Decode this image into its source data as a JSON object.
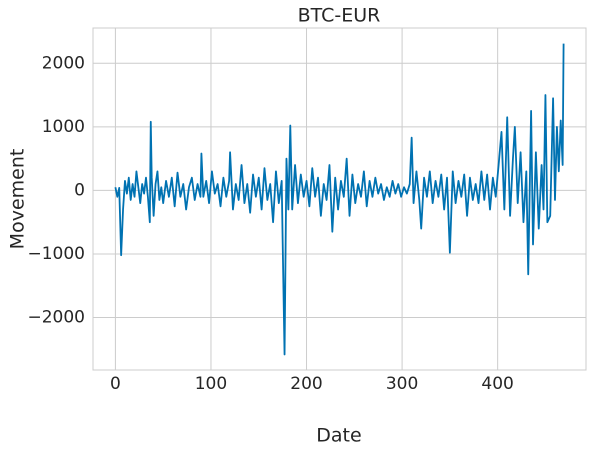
{
  "chart_data": {
    "type": "line",
    "title": "BTC-EUR",
    "xlabel": "Date",
    "ylabel": "Movement",
    "x": [
      0,
      2,
      4,
      6,
      8,
      10,
      12,
      14,
      16,
      18,
      20,
      22,
      24,
      26,
      28,
      30,
      32,
      34,
      36,
      37,
      38,
      40,
      42,
      44,
      46,
      48,
      50,
      53,
      56,
      59,
      62,
      65,
      68,
      71,
      74,
      77,
      80,
      83,
      86,
      89,
      90,
      92,
      95,
      98,
      101,
      104,
      107,
      110,
      113,
      116,
      119,
      120,
      123,
      126,
      129,
      132,
      135,
      138,
      141,
      144,
      147,
      150,
      153,
      156,
      159,
      162,
      165,
      168,
      171,
      174,
      175,
      177,
      179,
      181,
      183,
      185,
      188,
      191,
      194,
      197,
      200,
      203,
      206,
      209,
      212,
      215,
      218,
      221,
      224,
      227,
      230,
      233,
      236,
      239,
      242,
      245,
      248,
      251,
      254,
      257,
      260,
      263,
      266,
      269,
      272,
      275,
      278,
      281,
      284,
      287,
      290,
      293,
      296,
      299,
      302,
      305,
      308,
      310,
      312,
      315,
      318,
      320,
      323,
      326,
      329,
      332,
      335,
      338,
      341,
      344,
      347,
      350,
      353,
      356,
      359,
      362,
      365,
      368,
      371,
      374,
      377,
      380,
      383,
      386,
      389,
      392,
      395,
      398,
      401,
      404,
      407,
      410,
      413,
      416,
      418,
      421,
      424,
      427,
      430,
      432,
      435,
      437,
      440,
      443,
      446,
      448,
      450,
      452,
      455,
      458,
      460,
      462,
      464,
      466,
      468,
      469
    ],
    "series": [
      {
        "name": "Movement",
        "color": "#0072b2",
        "values": [
          50,
          -100,
          40,
          -1020,
          -300,
          150,
          -50,
          200,
          -150,
          100,
          -100,
          300,
          50,
          -200,
          100,
          -50,
          200,
          -100,
          -500,
          1080,
          200,
          -400,
          100,
          300,
          -150,
          50,
          -200,
          150,
          -100,
          200,
          -250,
          280,
          -100,
          100,
          -300,
          50,
          200,
          -150,
          100,
          -100,
          580,
          -100,
          150,
          -200,
          300,
          -50,
          100,
          -250,
          200,
          -100,
          150,
          600,
          -300,
          100,
          -150,
          400,
          -200,
          100,
          -350,
          250,
          -100,
          200,
          -300,
          350,
          -150,
          100,
          -500,
          300,
          -200,
          150,
          -780,
          -2580,
          500,
          -300,
          1020,
          -300,
          400,
          -200,
          250,
          -100,
          150,
          -250,
          350,
          -100,
          200,
          -400,
          100,
          -150,
          400,
          -650,
          200,
          -300,
          150,
          -100,
          500,
          -400,
          250,
          -200,
          100,
          -100,
          300,
          -250,
          150,
          -100,
          200,
          -50,
          100,
          -150,
          50,
          -100,
          150,
          -50,
          100,
          -100,
          50,
          -50,
          100,
          830,
          -200,
          300,
          -150,
          -600,
          200,
          -100,
          300,
          -200,
          150,
          -100,
          250,
          -300,
          200,
          -980,
          300,
          -200,
          150,
          -100,
          250,
          -400,
          200,
          -150,
          100,
          -200,
          300,
          -150,
          250,
          -300,
          200,
          -100,
          400,
          920,
          -300,
          1150,
          -400,
          500,
          1000,
          -200,
          600,
          -500,
          300,
          -1320,
          1250,
          -850,
          600,
          -600,
          400,
          -300,
          1500,
          -500,
          -400,
          1450,
          -150,
          1000,
          300,
          1100,
          400,
          2310
        ]
      }
    ],
    "xlim": [
      -23.45,
      492.45
    ],
    "xticks": [
      0,
      100,
      200,
      300,
      400
    ],
    "ylim": [
      -2825,
      2555
    ],
    "yticks": [
      {
        "value": -2000,
        "label": "−2000"
      },
      {
        "value": -1000,
        "label": "−1000"
      },
      0,
      1000,
      2000
    ],
    "grid": true
  }
}
